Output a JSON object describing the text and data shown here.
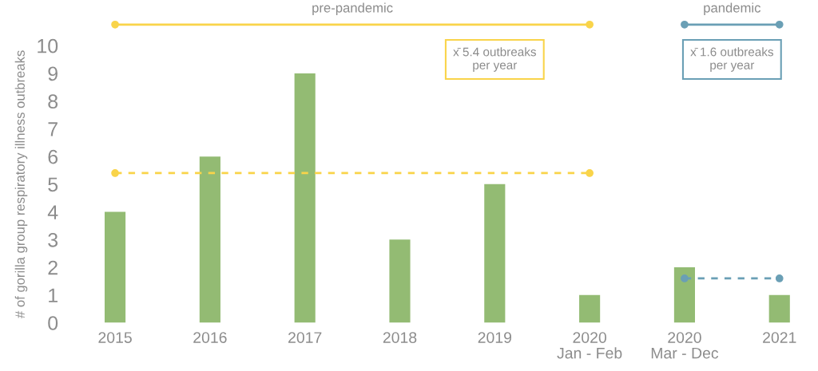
{
  "chart_data": {
    "type": "bar",
    "ylabel": "# of gorilla group respiratory illness outbreaks",
    "categories": [
      "2015",
      "2016",
      "2017",
      "2018",
      "2019",
      "2020\nJan - Feb",
      "2020\nMar - Dec",
      "2021"
    ],
    "series": [
      {
        "color": "#93bb73",
        "values": [
          4,
          6,
          9,
          3,
          5,
          1,
          2,
          1
        ]
      },
      {
        "type": "line",
        "color": "#f9d44a",
        "values": [
          5.4,
          5.4,
          5.4,
          5.4,
          5.4,
          5.4,
          null,
          null
        ],
        "line_style": "dashed",
        "marker": "none"
      },
      {
        "type": "line",
        "color": "#6a9fb5",
        "values": [
          null,
          null,
          null,
          null,
          null,
          null,
          1.6,
          1.6
        ],
        "line_style": "dashed",
        "marker": "circle"
      }
    ],
    "annotations": [
      "pre-pandemic",
      "pandemic",
      "x̄ 5.4 outbreaks\nper year",
      "x̄ 1.6 outbreaks\nper year"
    ],
    "ylim": [
      0,
      10
    ],
    "yticks": [
      0,
      1,
      2,
      3,
      4,
      5,
      6,
      7,
      8,
      9,
      10
    ],
    "grid": false,
    "legend": false
  }
}
